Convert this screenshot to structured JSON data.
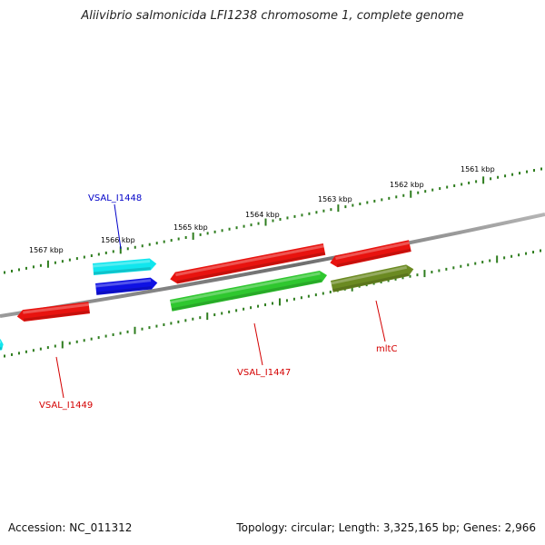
{
  "title": "Aliivibrio salmonicida LFI1238 chromosome 1, complete genome",
  "footer": {
    "accession": "Accession: NC_011312",
    "topology": "Topology: circular; Length: 3,325,165 bp; Genes: 2,966"
  },
  "colors": {
    "backbone": "#7a7a7a",
    "tick": "#2e7d1e",
    "red": "#e8130f",
    "cyan": "#11e6ee",
    "blue": "#0f11e3",
    "green": "#2fc72f",
    "olive": "#6b8a22",
    "label_red": "#d40000",
    "label_blue": "#0000c8"
  },
  "tick_labels": {
    "outer": [
      "1561 kbp",
      "1562 kbp",
      "1563 kbp",
      "1564 kbp",
      "1565 kbp",
      "1566 kbp",
      "1567 kbp"
    ]
  },
  "genes": [
    {
      "name": "",
      "color": "red",
      "strand": "reverse"
    },
    {
      "name": "",
      "color": "red",
      "strand": "reverse"
    },
    {
      "name": "",
      "color": "red",
      "strand": "reverse"
    },
    {
      "name": "",
      "color": "cyan",
      "strand": "reverse"
    },
    {
      "name": "",
      "color": "blue",
      "strand": "forward"
    },
    {
      "name": "",
      "color": "green",
      "strand": "forward"
    },
    {
      "name": "",
      "color": "olive",
      "strand": "forward"
    },
    {
      "name": "",
      "color": "cyan",
      "strand": "forward"
    }
  ],
  "labels": {
    "vsal_i1448": "VSAL_I1448",
    "vsal_i1447": "VSAL_I1447",
    "mltc": "mltC",
    "vsal_i1449": "VSAL_I1449"
  }
}
